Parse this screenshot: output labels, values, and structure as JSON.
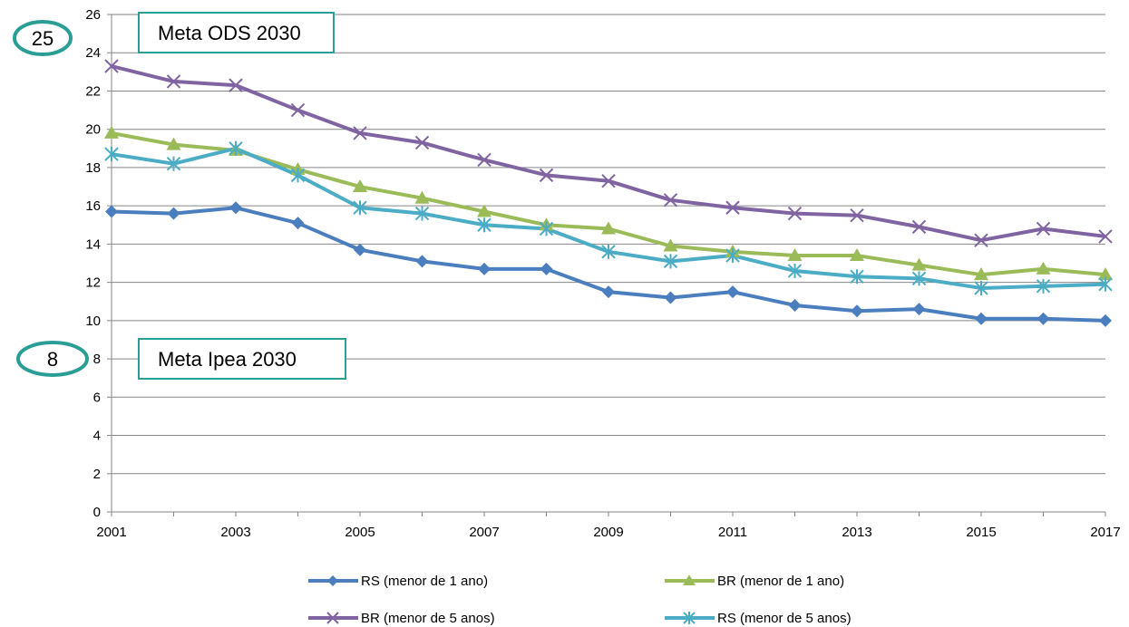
{
  "chart_data": {
    "type": "line",
    "title": "",
    "xlabel": "",
    "ylabel": "",
    "xlim": [
      2001,
      2017
    ],
    "ylim": [
      0,
      26
    ],
    "x_ticks": [
      "2001",
      "2003",
      "2005",
      "2007",
      "2009",
      "2011",
      "2013",
      "2015",
      "2017"
    ],
    "y_ticks": [
      "0",
      "2",
      "4",
      "6",
      "8",
      "10",
      "12",
      "14",
      "16",
      "18",
      "20",
      "22",
      "24",
      "26"
    ],
    "grid": "horizontal",
    "legend_position": "bottom",
    "x": [
      2001,
      2002,
      2003,
      2004,
      2005,
      2006,
      2007,
      2008,
      2009,
      2010,
      2011,
      2012,
      2013,
      2014,
      2015,
      2016,
      2017
    ],
    "series": [
      {
        "name": "RS (menor de 1 ano)",
        "color": "#4a7ebf",
        "marker": "diamond",
        "values": [
          15.7,
          15.6,
          15.9,
          15.1,
          13.7,
          13.1,
          12.7,
          12.7,
          11.5,
          11.2,
          11.5,
          10.8,
          10.5,
          10.6,
          10.1,
          10.1,
          10.0
        ]
      },
      {
        "name": "BR (menor de 1 ano)",
        "color": "#9bbb59",
        "marker": "triangle",
        "values": [
          19.8,
          19.2,
          18.9,
          17.9,
          17.0,
          16.4,
          15.7,
          15.0,
          14.8,
          13.9,
          13.6,
          13.4,
          13.4,
          12.9,
          12.4,
          12.7,
          12.4
        ]
      },
      {
        "name": "BR (menor de 5 anos)",
        "color": "#8064a2",
        "marker": "x",
        "values": [
          23.3,
          22.5,
          22.3,
          21.0,
          19.8,
          19.3,
          18.4,
          17.6,
          17.3,
          16.3,
          15.9,
          15.6,
          15.5,
          14.9,
          14.2,
          14.8,
          14.4
        ]
      },
      {
        "name": "RS (menor de 5 anos)",
        "color": "#4bacc6",
        "marker": "star",
        "values": [
          18.7,
          18.2,
          19.0,
          17.6,
          15.9,
          15.6,
          15.0,
          14.8,
          13.6,
          13.1,
          13.4,
          12.6,
          12.3,
          12.2,
          11.7,
          11.8,
          11.9
        ]
      }
    ]
  },
  "annotations": {
    "top_oval_number": "25",
    "top_box_label": "Meta ODS 2030",
    "bottom_oval_number": "8",
    "bottom_box_label": "Meta Ipea 2030",
    "accent_color": "#2a9d95"
  }
}
